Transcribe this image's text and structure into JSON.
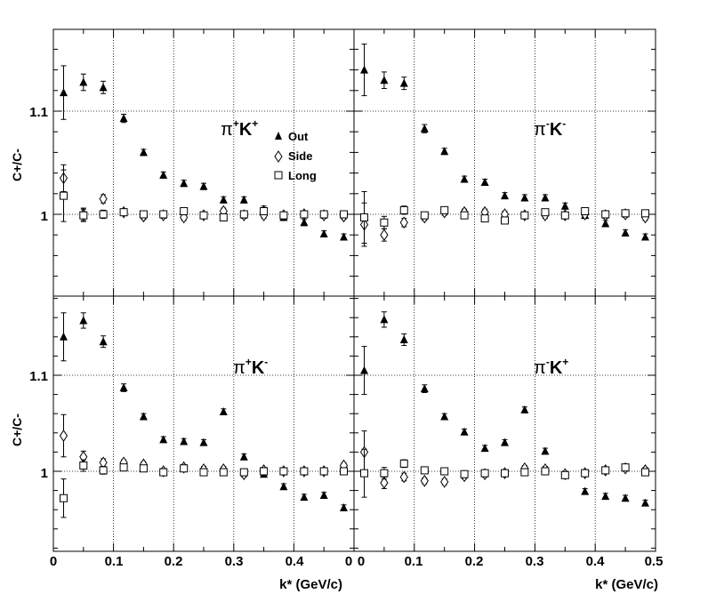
{
  "figure": {
    "ylabel": "C+/C-",
    "xlabel": "k* (GeV/c)",
    "legend": [
      "Out",
      "Side",
      "Long"
    ],
    "y_ticks": [
      "1.1",
      "1"
    ],
    "x_ticks_left": [
      "0",
      "0.1",
      "0.2",
      "0.3",
      "0.4",
      "0"
    ],
    "x_ticks_right": [
      "0",
      "0.1",
      "0.2",
      "0.3",
      "0.4",
      "0.5"
    ]
  },
  "chart_data": [
    {
      "type": "scatter",
      "panel": "top-left",
      "title": "π+K+",
      "xlim": [
        0,
        0.5
      ],
      "ylim": [
        0.9,
        1.19
      ],
      "grid": true,
      "legend_position": "middle",
      "x": [
        0.017,
        0.05,
        0.083,
        0.117,
        0.15,
        0.183,
        0.217,
        0.25,
        0.283,
        0.317,
        0.35,
        0.383,
        0.417,
        0.45,
        0.483
      ],
      "series": [
        {
          "name": "Out",
          "marker": "filled-triangle",
          "values": [
            1.118,
            1.128,
            1.123,
            1.093,
            1.06,
            1.038,
            1.03,
            1.027,
            1.014,
            1.014,
            1.005,
            0.997,
            0.992,
            0.981,
            0.978
          ],
          "errors": [
            0.026,
            0.008,
            0.006,
            0.004,
            0.003,
            0.003,
            0.003,
            0.003,
            0.003,
            0.003,
            0.003,
            0.003,
            0.003,
            0.003,
            0.003
          ]
        },
        {
          "name": "Side",
          "marker": "open-diamond",
          "values": [
            1.035,
            1.0,
            1.015,
            1.002,
            0.998,
            0.999,
            0.997,
            0.999,
            1.003,
            0.999,
            0.999,
            0.999,
            1.0,
            0.999,
            0.998
          ],
          "errors": [
            0.013,
            0.006,
            0.004,
            0.003,
            0.003,
            0.003,
            0.003,
            0.003,
            0.003,
            0.003,
            0.003,
            0.003,
            0.003,
            0.003,
            0.003
          ]
        },
        {
          "name": "Long",
          "marker": "open-square",
          "values": [
            1.018,
            0.999,
            1.0,
            1.002,
            1.0,
            1.0,
            1.003,
            0.999,
            0.997,
            1.0,
            1.003,
            0.999,
            1.0,
            1.0,
            1.0
          ],
          "errors": [
            0.025,
            0.006,
            0.004,
            0.003,
            0.003,
            0.003,
            0.003,
            0.003,
            0.003,
            0.003,
            0.003,
            0.003,
            0.003,
            0.003,
            0.003
          ]
        }
      ]
    },
    {
      "type": "scatter",
      "panel": "top-right",
      "title": "π-K-",
      "xlim": [
        0,
        0.5
      ],
      "ylim": [
        0.9,
        1.19
      ],
      "grid": true,
      "x": [
        0.017,
        0.05,
        0.083,
        0.117,
        0.15,
        0.183,
        0.217,
        0.25,
        0.283,
        0.317,
        0.35,
        0.383,
        0.417,
        0.45,
        0.483
      ],
      "series": [
        {
          "name": "Out",
          "marker": "filled-triangle",
          "values": [
            1.14,
            1.13,
            1.127,
            1.083,
            1.061,
            1.034,
            1.031,
            1.018,
            1.016,
            1.016,
            1.008,
            0.999,
            0.991,
            0.982,
            0.978
          ],
          "errors": [
            0.025,
            0.008,
            0.006,
            0.004,
            0.003,
            0.003,
            0.003,
            0.003,
            0.003,
            0.003,
            0.003,
            0.003,
            0.003,
            0.003,
            0.003
          ]
        },
        {
          "name": "Side",
          "marker": "open-diamond",
          "values": [
            0.99,
            0.98,
            0.992,
            0.997,
            1.002,
            1.002,
            1.002,
            1.0,
            0.999,
            0.999,
            0.999,
            1.0,
            0.999,
            1.0,
            0.997
          ],
          "errors": [
            0.021,
            0.006,
            0.004,
            0.003,
            0.003,
            0.003,
            0.003,
            0.003,
            0.003,
            0.003,
            0.003,
            0.003,
            0.003,
            0.003,
            0.003
          ]
        },
        {
          "name": "Long",
          "marker": "open-square",
          "values": [
            0.997,
            0.992,
            1.004,
            0.999,
            1.004,
            0.999,
            0.996,
            0.994,
            0.999,
            1.002,
            0.999,
            1.003,
            1.0,
            1.001,
            1.001
          ],
          "errors": [
            0.025,
            0.006,
            0.004,
            0.003,
            0.003,
            0.003,
            0.003,
            0.003,
            0.003,
            0.003,
            0.003,
            0.003,
            0.003,
            0.003,
            0.003
          ]
        }
      ]
    },
    {
      "type": "scatter",
      "panel": "bottom-left",
      "title": "π+K-",
      "xlim": [
        0,
        0.5
      ],
      "ylim": [
        0.9,
        1.19
      ],
      "grid": true,
      "x": [
        0.017,
        0.05,
        0.083,
        0.117,
        0.15,
        0.183,
        0.217,
        0.25,
        0.283,
        0.317,
        0.35,
        0.383,
        0.417,
        0.45,
        0.483
      ],
      "series": [
        {
          "name": "Out",
          "marker": "filled-triangle",
          "values": [
            1.14,
            1.157,
            1.135,
            1.087,
            1.057,
            1.033,
            1.031,
            1.03,
            1.062,
            1.015,
            0.997,
            0.984,
            0.973,
            0.975,
            0.962
          ],
          "errors": [
            0.025,
            0.008,
            0.006,
            0.004,
            0.003,
            0.003,
            0.003,
            0.003,
            0.003,
            0.003,
            0.003,
            0.003,
            0.003,
            0.003,
            0.003
          ]
        },
        {
          "name": "Side",
          "marker": "open-diamond",
          "values": [
            1.037,
            1.015,
            1.009,
            1.009,
            1.007,
            1.0,
            1.004,
            1.002,
            1.002,
            0.997,
            1.001,
            1.0,
            1.0,
            1.0,
            1.006
          ],
          "errors": [
            0.022,
            0.006,
            0.004,
            0.003,
            0.003,
            0.003,
            0.003,
            0.003,
            0.003,
            0.003,
            0.003,
            0.003,
            0.003,
            0.003,
            0.003
          ]
        },
        {
          "name": "Long",
          "marker": "open-square",
          "values": [
            0.972,
            1.006,
            1.001,
            1.004,
            1.003,
            0.999,
            1.003,
            0.999,
            0.999,
            0.999,
            1.0,
            1.0,
            1.0,
            1.0,
            1.0
          ],
          "errors": [
            0.02,
            0.006,
            0.004,
            0.003,
            0.003,
            0.003,
            0.003,
            0.003,
            0.003,
            0.003,
            0.003,
            0.003,
            0.003,
            0.003,
            0.003
          ]
        }
      ]
    },
    {
      "type": "scatter",
      "panel": "bottom-right",
      "title": "π-K+",
      "xlim": [
        0,
        0.5
      ],
      "ylim": [
        0.9,
        1.19
      ],
      "grid": true,
      "x": [
        0.017,
        0.05,
        0.083,
        0.117,
        0.15,
        0.183,
        0.217,
        0.25,
        0.283,
        0.317,
        0.35,
        0.383,
        0.417,
        0.45,
        0.483
      ],
      "series": [
        {
          "name": "Out",
          "marker": "filled-triangle",
          "values": [
            1.105,
            1.158,
            1.137,
            1.086,
            1.057,
            1.041,
            1.024,
            1.03,
            1.064,
            1.021,
            0.996,
            0.979,
            0.974,
            0.972,
            0.967
          ],
          "errors": [
            0.025,
            0.008,
            0.006,
            0.004,
            0.003,
            0.003,
            0.003,
            0.003,
            0.003,
            0.003,
            0.003,
            0.003,
            0.003,
            0.003,
            0.003
          ]
        },
        {
          "name": "Side",
          "marker": "open-diamond",
          "values": [
            1.02,
            0.988,
            0.994,
            0.99,
            0.989,
            0.995,
            0.997,
            0.998,
            1.003,
            1.002,
            0.997,
            0.998,
            1.001,
            1.003,
            1.001
          ],
          "errors": [
            0.022,
            0.006,
            0.004,
            0.003,
            0.003,
            0.003,
            0.003,
            0.003,
            0.003,
            0.003,
            0.003,
            0.003,
            0.003,
            0.003,
            0.003
          ]
        },
        {
          "name": "Long",
          "marker": "open-square",
          "values": [
            0.998,
            0.998,
            1.008,
            1.001,
            1.0,
            0.997,
            0.998,
            0.998,
            0.999,
            1.0,
            0.996,
            0.998,
            1.001,
            1.004,
            0.999
          ],
          "errors": [
            0.025,
            0.006,
            0.004,
            0.003,
            0.003,
            0.003,
            0.003,
            0.003,
            0.003,
            0.003,
            0.003,
            0.003,
            0.003,
            0.003,
            0.003
          ]
        }
      ]
    }
  ]
}
